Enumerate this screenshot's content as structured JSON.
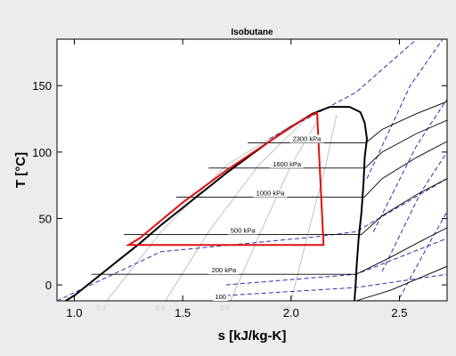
{
  "chart_data": {
    "type": "line",
    "title": "Isobutane",
    "xlabel": "s [kJ/kg-K]",
    "ylabel": "T [°C]",
    "xlim": [
      0.92,
      2.72
    ],
    "ylim": [
      -12,
      185
    ],
    "xticks": [
      "1.0",
      "1.5",
      "2.0",
      "2.5"
    ],
    "xtick_values": [
      1.0,
      1.5,
      2.0,
      2.5
    ],
    "yticks": [
      "0",
      "50",
      "100",
      "150"
    ],
    "ytick_values": [
      0,
      50,
      100,
      150
    ],
    "grid": false,
    "colors": {
      "background": "#ececec",
      "plot_area": "#ffffff",
      "saturation_dome": "#000000",
      "isobars": "#000000",
      "quality_lines": "#b4b4b4",
      "isenthalps": "#2b2bb0",
      "cycle": "#e01010"
    },
    "saturation_dome": {
      "liquid": [
        [
          0.92,
          -16
        ],
        [
          1.0,
          -8
        ],
        [
          1.1,
          5
        ],
        [
          1.2,
          18
        ],
        [
          1.3,
          31
        ],
        [
          1.4,
          45
        ],
        [
          1.5,
          58
        ],
        [
          1.6,
          71
        ],
        [
          1.7,
          84
        ],
        [
          1.8,
          96
        ],
        [
          1.9,
          108
        ],
        [
          2.0,
          119
        ],
        [
          2.1,
          129
        ],
        [
          2.18,
          134
        ]
      ],
      "vapor": [
        [
          2.18,
          134
        ],
        [
          2.27,
          134
        ],
        [
          2.32,
          130
        ],
        [
          2.34,
          122
        ],
        [
          2.35,
          110
        ],
        [
          2.34,
          96
        ],
        [
          2.335,
          78
        ],
        [
          2.325,
          55
        ],
        [
          2.312,
          35
        ],
        [
          2.303,
          15
        ],
        [
          2.298,
          0
        ],
        [
          2.294,
          -9
        ],
        [
          2.292,
          -16
        ]
      ]
    },
    "isobars": [
      {
        "label": "100",
        "points": [
          [
            1.05,
            -12
          ],
          [
            1.8,
            -12
          ],
          [
            2.3,
            -12
          ],
          [
            2.46,
            -4
          ],
          [
            2.62,
            7
          ],
          [
            2.72,
            14
          ]
        ]
      },
      {
        "label": "200 kPa",
        "points": [
          [
            1.08,
            8
          ],
          [
            1.6,
            8
          ],
          [
            2.3,
            8
          ],
          [
            2.45,
            20
          ],
          [
            2.6,
            33
          ],
          [
            2.72,
            43
          ]
        ]
      },
      {
        "label": "500 kPa",
        "points": [
          [
            1.23,
            38
          ],
          [
            1.8,
            38
          ],
          [
            2.325,
            38
          ],
          [
            2.42,
            52
          ],
          [
            2.58,
            68
          ],
          [
            2.72,
            80
          ]
        ]
      },
      {
        "label": "1000 kPa",
        "points": [
          [
            1.47,
            66
          ],
          [
            2.0,
            66
          ],
          [
            2.338,
            66
          ],
          [
            2.42,
            80
          ],
          [
            2.58,
            96
          ],
          [
            2.72,
            108
          ]
        ]
      },
      {
        "label": "1600 kPa",
        "points": [
          [
            1.62,
            88
          ],
          [
            2.1,
            88
          ],
          [
            2.342,
            88
          ],
          [
            2.42,
            100
          ],
          [
            2.58,
            114
          ],
          [
            2.72,
            124
          ]
        ]
      },
      {
        "label": "2300 kPa",
        "points": [
          [
            1.8,
            107
          ],
          [
            2.2,
            107
          ],
          [
            2.345,
            107
          ],
          [
            2.42,
            117
          ],
          [
            2.58,
            129
          ],
          [
            2.72,
            138
          ]
        ]
      }
    ],
    "quality_lines": [
      {
        "label": "0.2",
        "points": [
          [
            1.15,
            -12
          ],
          [
            1.4,
            40
          ],
          [
            1.7,
            90
          ],
          [
            2.0,
            120
          ]
        ]
      },
      {
        "label": "0.4",
        "points": [
          [
            1.42,
            -12
          ],
          [
            1.62,
            40
          ],
          [
            1.85,
            90
          ],
          [
            2.05,
            122
          ]
        ]
      },
      {
        "label": "0.6",
        "points": [
          [
            1.72,
            -12
          ],
          [
            1.86,
            40
          ],
          [
            2.0,
            90
          ],
          [
            2.13,
            126
          ]
        ]
      },
      {
        "label": "0.8",
        "points": [
          [
            2.0,
            -12
          ],
          [
            2.08,
            40
          ],
          [
            2.16,
            90
          ],
          [
            2.21,
            128
          ]
        ]
      }
    ],
    "isenthalps": [
      {
        "points": [
          [
            0.92,
            -12
          ],
          [
            1.4,
            25
          ],
          [
            2.1,
            36
          ],
          [
            2.3,
            40
          ],
          [
            2.72,
            80
          ]
        ]
      },
      {
        "points": [
          [
            1.7,
            0
          ],
          [
            2.3,
            8
          ],
          [
            2.72,
            35
          ]
        ]
      },
      {
        "points": [
          [
            1.7,
            -8
          ],
          [
            2.3,
            -2
          ],
          [
            2.72,
            8
          ]
        ]
      },
      {
        "points": [
          [
            2.35,
            80
          ],
          [
            2.55,
            150
          ],
          [
            2.7,
            185
          ]
        ]
      },
      {
        "points": [
          [
            2.38,
            40
          ],
          [
            2.58,
            105
          ],
          [
            2.72,
            140
          ]
        ]
      },
      {
        "points": [
          [
            2.42,
            10
          ],
          [
            2.6,
            70
          ],
          [
            2.72,
            100
          ]
        ]
      },
      {
        "points": [
          [
            2.5,
            -10
          ],
          [
            2.65,
            35
          ],
          [
            2.72,
            55
          ]
        ]
      },
      {
        "points": [
          [
            1.9,
            110
          ],
          [
            2.3,
            145
          ],
          [
            2.58,
            185
          ]
        ]
      }
    ],
    "cycle": {
      "points": [
        [
          2.12,
          130
        ],
        [
          2.15,
          30
        ],
        [
          1.25,
          30
        ],
        [
          1.3,
          35
        ],
        [
          1.5,
          62
        ],
        [
          1.7,
          86
        ],
        [
          1.9,
          108
        ],
        [
          2.05,
          124
        ],
        [
          2.12,
          130
        ]
      ]
    }
  }
}
